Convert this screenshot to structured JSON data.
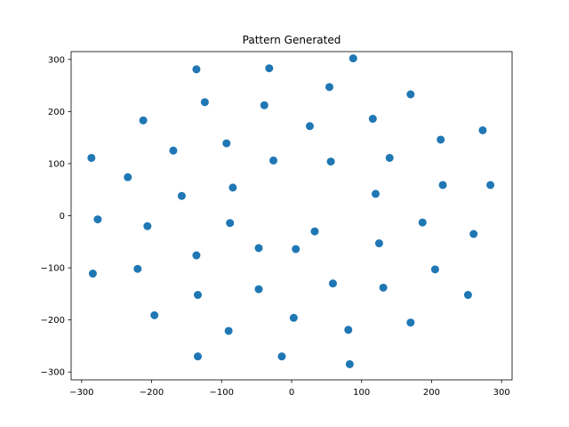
{
  "chart_data": {
    "type": "scatter",
    "title": "Pattern Generated",
    "xlabel": "",
    "ylabel": "",
    "xlim": [
      -315,
      315
    ],
    "ylim": [
      -315,
      315
    ],
    "xticks": [
      -300,
      -200,
      -100,
      0,
      100,
      200,
      300
    ],
    "yticks": [
      -300,
      -200,
      -100,
      0,
      100,
      200,
      300
    ],
    "grid": false,
    "marker_color": "#1f77b4",
    "points": [
      {
        "x": 88,
        "y": 302
      },
      {
        "x": -136,
        "y": 281
      },
      {
        "x": -32,
        "y": 283
      },
      {
        "x": 54,
        "y": 247
      },
      {
        "x": 170,
        "y": 233
      },
      {
        "x": -124,
        "y": 218
      },
      {
        "x": -39,
        "y": 212
      },
      {
        "x": 116,
        "y": 186
      },
      {
        "x": -212,
        "y": 183
      },
      {
        "x": 26,
        "y": 172
      },
      {
        "x": 273,
        "y": 164
      },
      {
        "x": 213,
        "y": 146
      },
      {
        "x": -93,
        "y": 139
      },
      {
        "x": -169,
        "y": 125
      },
      {
        "x": -286,
        "y": 111
      },
      {
        "x": 140,
        "y": 111
      },
      {
        "x": -26,
        "y": 106
      },
      {
        "x": 56,
        "y": 104
      },
      {
        "x": -234,
        "y": 74
      },
      {
        "x": 216,
        "y": 59
      },
      {
        "x": 284,
        "y": 59
      },
      {
        "x": -84,
        "y": 54
      },
      {
        "x": 120,
        "y": 42
      },
      {
        "x": -157,
        "y": 38
      },
      {
        "x": -277,
        "y": -7
      },
      {
        "x": 187,
        "y": -13
      },
      {
        "x": -88,
        "y": -14
      },
      {
        "x": -206,
        "y": -20
      },
      {
        "x": 33,
        "y": -30
      },
      {
        "x": 260,
        "y": -35
      },
      {
        "x": 125,
        "y": -53
      },
      {
        "x": -47,
        "y": -62
      },
      {
        "x": 6,
        "y": -64
      },
      {
        "x": -136,
        "y": -76
      },
      {
        "x": -220,
        "y": -102
      },
      {
        "x": 205,
        "y": -103
      },
      {
        "x": -284,
        "y": -111
      },
      {
        "x": 59,
        "y": -130
      },
      {
        "x": 131,
        "y": -138
      },
      {
        "x": -47,
        "y": -141
      },
      {
        "x": -134,
        "y": -152
      },
      {
        "x": 252,
        "y": -152
      },
      {
        "x": -196,
        "y": -191
      },
      {
        "x": 3,
        "y": -196
      },
      {
        "x": 170,
        "y": -205
      },
      {
        "x": 81,
        "y": -219
      },
      {
        "x": -90,
        "y": -221
      },
      {
        "x": -134,
        "y": -270
      },
      {
        "x": -14,
        "y": -270
      },
      {
        "x": 83,
        "y": -285
      }
    ]
  }
}
